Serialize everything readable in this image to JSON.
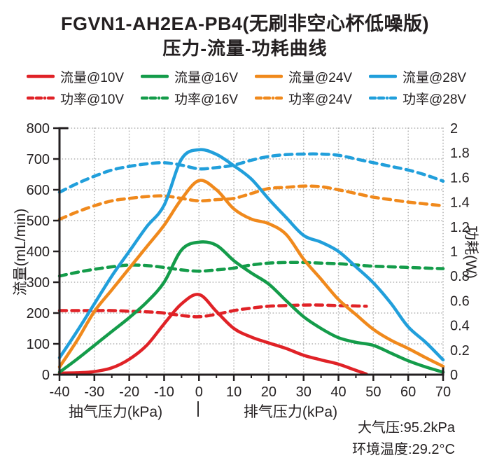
{
  "page": {
    "title": "FGVN1-AH2EA-PB4(无刷非空心杯低噪版)",
    "subtitle": "压力-流量-功耗曲线"
  },
  "annotations": {
    "atmospheric_pressure": "大气压:95.2kPa",
    "ambient_temperature": "环境温度:29.2°C"
  },
  "colors": {
    "red": "#e02227",
    "green": "#149c4a",
    "orange": "#f0891c",
    "blue": "#219fdb",
    "axis": "#231f20",
    "grid": "#b7b7b7"
  },
  "chart_data": {
    "type": "line",
    "title": "压力-流量-功耗曲线",
    "grid": {
      "show": true,
      "style": "dotted",
      "color": "#b7b7b7"
    },
    "x_axis": {
      "label_left": "抽气压力(kPa)",
      "label_divider": "|",
      "label_right": "排气压力(kPa)",
      "min": -40,
      "max": 70,
      "major_tick_step": 10,
      "minor_tick_step": 5,
      "tick_labels": [
        "-40",
        "-30",
        "-20",
        "-10",
        "0",
        "10",
        "20",
        "30",
        "40",
        "50",
        "60",
        "70"
      ]
    },
    "left_axis": {
      "label": "流量(mL/min)",
      "min": 0,
      "max": 800,
      "tick_step": 100,
      "tick_labels": [
        "800",
        "700",
        "600",
        "500",
        "400",
        "300",
        "200",
        "100",
        "0"
      ]
    },
    "right_axis": {
      "label": "功耗(W)",
      "min": 0,
      "max": 2,
      "tick_step": 0.2,
      "tick_labels": [
        "2",
        "1.8",
        "1.6",
        "1.4",
        "1.2",
        "1",
        "0.8",
        "0.6",
        "0.4",
        "0.2",
        "0"
      ]
    },
    "series": [
      {
        "id": "flow-10v",
        "name": "流量@10V",
        "axis": "left",
        "style": "solid",
        "color": "#e02227",
        "x": [
          -40,
          -35,
          -30,
          -25,
          -20,
          -15,
          -10,
          -5,
          0,
          5,
          10,
          15,
          20,
          25,
          30,
          35,
          40,
          44,
          48
        ],
        "values": [
          5,
          6,
          10,
          22,
          50,
          95,
          165,
          230,
          260,
          205,
          150,
          122,
          103,
          85,
          63,
          48,
          34,
          18,
          2
        ]
      },
      {
        "id": "flow-16v",
        "name": "流量@16V",
        "axis": "left",
        "style": "solid",
        "color": "#149c4a",
        "x": [
          -40,
          -35,
          -30,
          -25,
          -20,
          -15,
          -10,
          -5,
          0,
          5,
          10,
          15,
          20,
          25,
          30,
          35,
          40,
          45,
          50,
          55,
          60,
          65,
          70
        ],
        "values": [
          8,
          50,
          95,
          140,
          185,
          235,
          300,
          405,
          430,
          420,
          370,
          330,
          294,
          240,
          188,
          150,
          120,
          105,
          95,
          70,
          45,
          25,
          8
        ]
      },
      {
        "id": "flow-24v",
        "name": "流量@24V",
        "axis": "left",
        "style": "solid",
        "color": "#f0891c",
        "x": [
          -40,
          -35,
          -30,
          -25,
          -20,
          -15,
          -10,
          -5,
          0,
          5,
          10,
          15,
          20,
          25,
          30,
          35,
          40,
          45,
          50,
          55,
          60,
          65,
          70
        ],
        "values": [
          25,
          110,
          205,
          275,
          345,
          415,
          485,
          570,
          630,
          600,
          538,
          505,
          490,
          455,
          375,
          310,
          244,
          195,
          147,
          112,
          85,
          55,
          27
        ]
      },
      {
        "id": "flow-28v",
        "name": "流量@28V",
        "axis": "left",
        "style": "solid",
        "color": "#219fdb",
        "x": [
          -40,
          -35,
          -30,
          -25,
          -20,
          -15,
          -10,
          -5,
          0,
          5,
          10,
          15,
          20,
          25,
          30,
          35,
          40,
          45,
          50,
          55,
          60,
          65,
          70
        ],
        "values": [
          55,
          140,
          230,
          320,
          400,
          480,
          550,
          700,
          730,
          715,
          678,
          635,
          570,
          510,
          452,
          430,
          400,
          350,
          298,
          232,
          155,
          105,
          48
        ]
      },
      {
        "id": "power-10v",
        "name": "功率@10V",
        "axis": "right",
        "style": "dashed",
        "color": "#e02227",
        "x": [
          -40,
          -35,
          -30,
          -25,
          -20,
          -15,
          -10,
          -5,
          0,
          5,
          10,
          15,
          20,
          25,
          30,
          35,
          40,
          44,
          48
        ],
        "values": [
          0.52,
          0.52,
          0.52,
          0.52,
          0.515,
          0.51,
          0.5,
          0.48,
          0.47,
          0.49,
          0.52,
          0.54,
          0.555,
          0.56,
          0.565,
          0.565,
          0.56,
          0.558,
          0.555
        ]
      },
      {
        "id": "power-16v",
        "name": "功率@16V",
        "axis": "right",
        "style": "dashed",
        "color": "#149c4a",
        "x": [
          -40,
          -35,
          -30,
          -25,
          -20,
          -15,
          -10,
          -5,
          0,
          5,
          10,
          15,
          20,
          25,
          30,
          35,
          40,
          45,
          50,
          55,
          60,
          65,
          70
        ],
        "values": [
          0.8,
          0.83,
          0.855,
          0.875,
          0.89,
          0.885,
          0.87,
          0.85,
          0.84,
          0.85,
          0.865,
          0.89,
          0.905,
          0.91,
          0.91,
          0.905,
          0.9,
          0.89,
          0.88,
          0.875,
          0.87,
          0.865,
          0.86
        ]
      },
      {
        "id": "power-24v",
        "name": "功率@24V",
        "axis": "right",
        "style": "dashed",
        "color": "#f0891c",
        "x": [
          -40,
          -35,
          -30,
          -25,
          -20,
          -15,
          -10,
          -5,
          0,
          5,
          10,
          15,
          20,
          25,
          30,
          35,
          40,
          45,
          50,
          55,
          60,
          65,
          70
        ],
        "values": [
          1.26,
          1.32,
          1.37,
          1.41,
          1.43,
          1.445,
          1.45,
          1.43,
          1.41,
          1.42,
          1.43,
          1.47,
          1.51,
          1.52,
          1.53,
          1.525,
          1.5,
          1.47,
          1.44,
          1.42,
          1.4,
          1.385,
          1.37
        ]
      },
      {
        "id": "power-28v",
        "name": "功率@28V",
        "axis": "right",
        "style": "dashed",
        "color": "#219fdb",
        "x": [
          -40,
          -35,
          -30,
          -25,
          -20,
          -15,
          -10,
          -5,
          0,
          5,
          10,
          15,
          20,
          25,
          30,
          35,
          40,
          45,
          50,
          55,
          60,
          65,
          70
        ],
        "values": [
          1.48,
          1.55,
          1.61,
          1.66,
          1.69,
          1.71,
          1.72,
          1.7,
          1.67,
          1.68,
          1.7,
          1.74,
          1.77,
          1.785,
          1.79,
          1.79,
          1.78,
          1.75,
          1.72,
          1.69,
          1.66,
          1.62,
          1.57
        ]
      }
    ]
  }
}
